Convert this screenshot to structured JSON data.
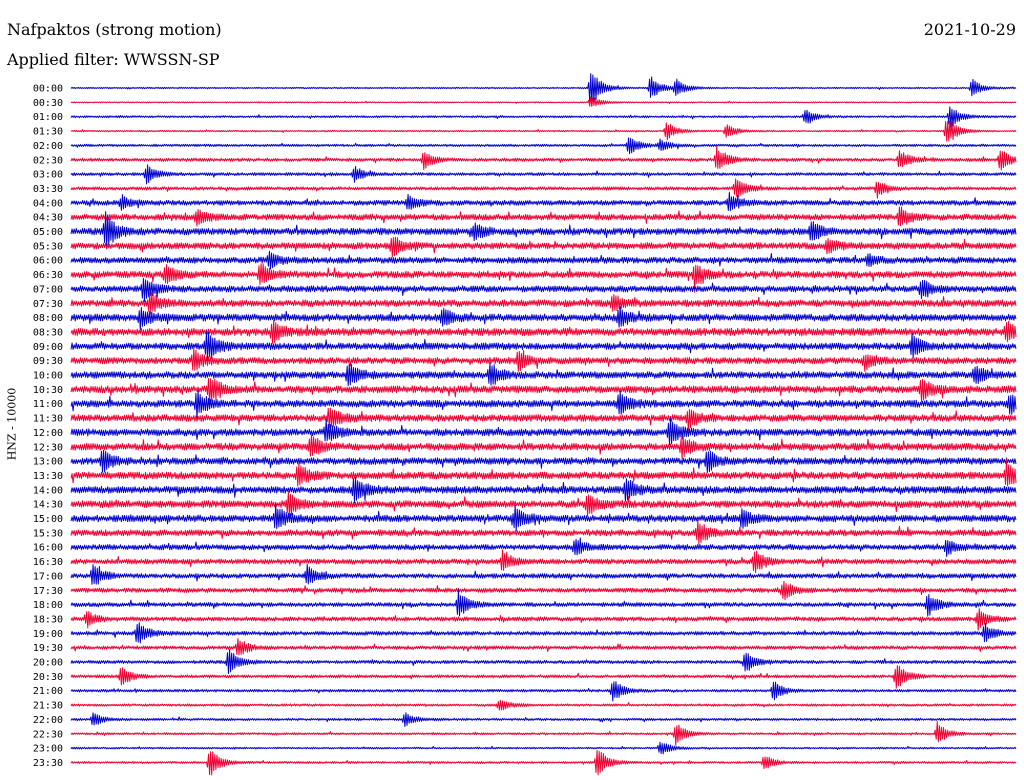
{
  "header": {
    "title": "Nafpaktos (strong motion)",
    "date": "2021-10-29",
    "filter": "Applied filter: WWSSN-SP"
  },
  "chart_data": {
    "type": "line",
    "title": "Nafpaktos (strong motion)",
    "ylabel": "HNZ - 10000",
    "xlabel": "",
    "grid": false,
    "legend": "none",
    "trace_colors": [
      "#0000cc",
      "#ee0033"
    ],
    "rows": [
      "00:00",
      "00:30",
      "01:00",
      "01:30",
      "02:00",
      "02:30",
      "03:00",
      "03:30",
      "04:00",
      "04:30",
      "05:00",
      "05:30",
      "06:00",
      "06:30",
      "07:00",
      "07:30",
      "08:00",
      "08:30",
      "09:00",
      "09:30",
      "10:00",
      "10:30",
      "11:00",
      "11:30",
      "12:00",
      "12:30",
      "13:00",
      "13:30",
      "14:00",
      "14:30",
      "15:00",
      "15:30",
      "16:00",
      "16:30",
      "17:00",
      "17:30",
      "18:00",
      "18:30",
      "19:00",
      "19:30",
      "20:00",
      "20:30",
      "21:00",
      "21:30",
      "22:00",
      "22:30",
      "23:00",
      "23:30"
    ],
    "noise_levels": [
      0.5,
      0.4,
      0.7,
      0.5,
      0.8,
      1.1,
      1.0,
      1.1,
      1.7,
      2.0,
      2.3,
      2.2,
      2.1,
      2.2,
      2.1,
      2.3,
      2.4,
      2.5,
      2.3,
      2.2,
      2.3,
      2.4,
      2.4,
      2.3,
      2.4,
      2.4,
      2.3,
      2.4,
      2.4,
      2.4,
      2.3,
      2.1,
      1.8,
      1.7,
      1.6,
      1.5,
      1.4,
      1.4,
      1.3,
      1.2,
      1.1,
      1.0,
      0.9,
      0.8,
      0.8,
      0.7,
      0.6,
      0.7
    ],
    "events": [
      {
        "row": 0,
        "minute": 16.5,
        "amplitude": 22
      },
      {
        "row": 0,
        "minute": 18.4,
        "amplitude": 13
      },
      {
        "row": 0,
        "minute": 19.2,
        "amplitude": 9
      },
      {
        "row": 0,
        "minute": 28.6,
        "amplitude": 9
      },
      {
        "row": 1,
        "minute": 16.5,
        "amplitude": 6
      },
      {
        "row": 2,
        "minute": 23.3,
        "amplitude": 8
      },
      {
        "row": 2,
        "minute": 27.9,
        "amplitude": 12
      },
      {
        "row": 3,
        "minute": 18.9,
        "amplitude": 10
      },
      {
        "row": 3,
        "minute": 20.8,
        "amplitude": 8
      },
      {
        "row": 3,
        "minute": 27.8,
        "amplitude": 16
      },
      {
        "row": 4,
        "minute": 17.7,
        "amplitude": 10
      },
      {
        "row": 4,
        "minute": 18.7,
        "amplitude": 6
      },
      {
        "row": 5,
        "minute": 11.2,
        "amplitude": 10
      },
      {
        "row": 5,
        "minute": 20.5,
        "amplitude": 14
      },
      {
        "row": 5,
        "minute": 26.3,
        "amplitude": 10
      },
      {
        "row": 5,
        "minute": 29.5,
        "amplitude": 12
      },
      {
        "row": 6,
        "minute": 2.4,
        "amplitude": 10
      },
      {
        "row": 6,
        "minute": 9.0,
        "amplitude": 8
      },
      {
        "row": 7,
        "minute": 21.1,
        "amplitude": 12
      },
      {
        "row": 7,
        "minute": 25.6,
        "amplitude": 9
      },
      {
        "row": 8,
        "minute": 1.6,
        "amplitude": 7
      },
      {
        "row": 8,
        "minute": 10.7,
        "amplitude": 7
      },
      {
        "row": 8,
        "minute": 20.9,
        "amplitude": 9
      },
      {
        "row": 9,
        "minute": 4.0,
        "amplitude": 8
      },
      {
        "row": 9,
        "minute": 26.3,
        "amplitude": 10
      },
      {
        "row": 10,
        "minute": 1.1,
        "amplitude": 18
      },
      {
        "row": 10,
        "minute": 12.8,
        "amplitude": 9
      },
      {
        "row": 10,
        "minute": 23.5,
        "amplitude": 10
      },
      {
        "row": 11,
        "minute": 10.2,
        "amplitude": 10
      },
      {
        "row": 11,
        "minute": 24.0,
        "amplitude": 8
      },
      {
        "row": 12,
        "minute": 6.3,
        "amplitude": 8
      },
      {
        "row": 12,
        "minute": 25.3,
        "amplitude": 6
      },
      {
        "row": 13,
        "minute": 3.0,
        "amplitude": 10
      },
      {
        "row": 13,
        "minute": 6.0,
        "amplitude": 12
      },
      {
        "row": 13,
        "minute": 19.8,
        "amplitude": 12
      },
      {
        "row": 14,
        "minute": 2.3,
        "amplitude": 12
      },
      {
        "row": 14,
        "minute": 27.0,
        "amplitude": 10
      },
      {
        "row": 15,
        "minute": 2.5,
        "amplitude": 10
      },
      {
        "row": 15,
        "minute": 17.2,
        "amplitude": 8
      },
      {
        "row": 16,
        "minute": 2.2,
        "amplitude": 10
      },
      {
        "row": 16,
        "minute": 11.8,
        "amplitude": 9
      },
      {
        "row": 16,
        "minute": 17.4,
        "amplitude": 10
      },
      {
        "row": 17,
        "minute": 6.4,
        "amplitude": 12
      },
      {
        "row": 17,
        "minute": 29.7,
        "amplitude": 10
      },
      {
        "row": 18,
        "minute": 4.3,
        "amplitude": 16
      },
      {
        "row": 18,
        "minute": 26.7,
        "amplitude": 10
      },
      {
        "row": 19,
        "minute": 3.9,
        "amplitude": 12
      },
      {
        "row": 19,
        "minute": 14.2,
        "amplitude": 10
      },
      {
        "row": 19,
        "minute": 25.2,
        "amplitude": 8
      },
      {
        "row": 20,
        "minute": 8.8,
        "amplitude": 12
      },
      {
        "row": 20,
        "minute": 13.3,
        "amplitude": 12
      },
      {
        "row": 20,
        "minute": 28.7,
        "amplitude": 10
      },
      {
        "row": 21,
        "minute": 4.4,
        "amplitude": 14
      },
      {
        "row": 21,
        "minute": 27.0,
        "amplitude": 12
      },
      {
        "row": 22,
        "minute": 4.0,
        "amplitude": 14
      },
      {
        "row": 22,
        "minute": 17.4,
        "amplitude": 12
      },
      {
        "row": 22,
        "minute": 29.8,
        "amplitude": 10
      },
      {
        "row": 23,
        "minute": 8.2,
        "amplitude": 12
      },
      {
        "row": 23,
        "minute": 19.6,
        "amplitude": 10
      },
      {
        "row": 24,
        "minute": 8.1,
        "amplitude": 10
      },
      {
        "row": 24,
        "minute": 19.0,
        "amplitude": 14
      },
      {
        "row": 25,
        "minute": 7.6,
        "amplitude": 12
      },
      {
        "row": 25,
        "minute": 19.4,
        "amplitude": 10
      },
      {
        "row": 26,
        "minute": 1.0,
        "amplitude": 12
      },
      {
        "row": 26,
        "minute": 20.2,
        "amplitude": 12
      },
      {
        "row": 27,
        "minute": 7.2,
        "amplitude": 12
      },
      {
        "row": 27,
        "minute": 29.7,
        "amplitude": 14
      },
      {
        "row": 28,
        "minute": 9.0,
        "amplitude": 14
      },
      {
        "row": 28,
        "minute": 17.6,
        "amplitude": 12
      },
      {
        "row": 29,
        "minute": 6.9,
        "amplitude": 12
      },
      {
        "row": 29,
        "minute": 16.4,
        "amplitude": 10
      },
      {
        "row": 30,
        "minute": 6.5,
        "amplitude": 14
      },
      {
        "row": 30,
        "minute": 14.1,
        "amplitude": 12
      },
      {
        "row": 30,
        "minute": 21.3,
        "amplitude": 10
      },
      {
        "row": 31,
        "minute": 19.9,
        "amplitude": 12
      },
      {
        "row": 32,
        "minute": 16.0,
        "amplitude": 8
      },
      {
        "row": 32,
        "minute": 27.8,
        "amplitude": 8
      },
      {
        "row": 33,
        "minute": 13.7,
        "amplitude": 10
      },
      {
        "row": 33,
        "minute": 21.7,
        "amplitude": 12
      },
      {
        "row": 34,
        "minute": 0.7,
        "amplitude": 12
      },
      {
        "row": 34,
        "minute": 7.5,
        "amplitude": 10
      },
      {
        "row": 35,
        "minute": 22.6,
        "amplitude": 10
      },
      {
        "row": 36,
        "minute": 12.3,
        "amplitude": 14
      },
      {
        "row": 36,
        "minute": 27.2,
        "amplitude": 12
      },
      {
        "row": 37,
        "minute": 0.5,
        "amplitude": 8
      },
      {
        "row": 37,
        "minute": 28.8,
        "amplitude": 10
      },
      {
        "row": 38,
        "minute": 2.1,
        "amplitude": 12
      },
      {
        "row": 38,
        "minute": 29.0,
        "amplitude": 10
      },
      {
        "row": 39,
        "minute": 5.3,
        "amplitude": 10
      },
      {
        "row": 40,
        "minute": 5.0,
        "amplitude": 14
      },
      {
        "row": 40,
        "minute": 21.4,
        "amplitude": 12
      },
      {
        "row": 41,
        "minute": 1.6,
        "amplitude": 10
      },
      {
        "row": 41,
        "minute": 26.2,
        "amplitude": 14
      },
      {
        "row": 42,
        "minute": 17.2,
        "amplitude": 12
      },
      {
        "row": 42,
        "minute": 22.3,
        "amplitude": 10
      },
      {
        "row": 43,
        "minute": 13.6,
        "amplitude": 6
      },
      {
        "row": 44,
        "minute": 0.7,
        "amplitude": 7
      },
      {
        "row": 44,
        "minute": 10.6,
        "amplitude": 7
      },
      {
        "row": 45,
        "minute": 19.2,
        "amplitude": 12
      },
      {
        "row": 45,
        "minute": 27.5,
        "amplitude": 12
      },
      {
        "row": 46,
        "minute": 18.7,
        "amplitude": 8
      },
      {
        "row": 47,
        "minute": 4.4,
        "amplitude": 16
      },
      {
        "row": 47,
        "minute": 16.7,
        "amplitude": 16
      },
      {
        "row": 47,
        "minute": 22.0,
        "amplitude": 8
      }
    ]
  }
}
